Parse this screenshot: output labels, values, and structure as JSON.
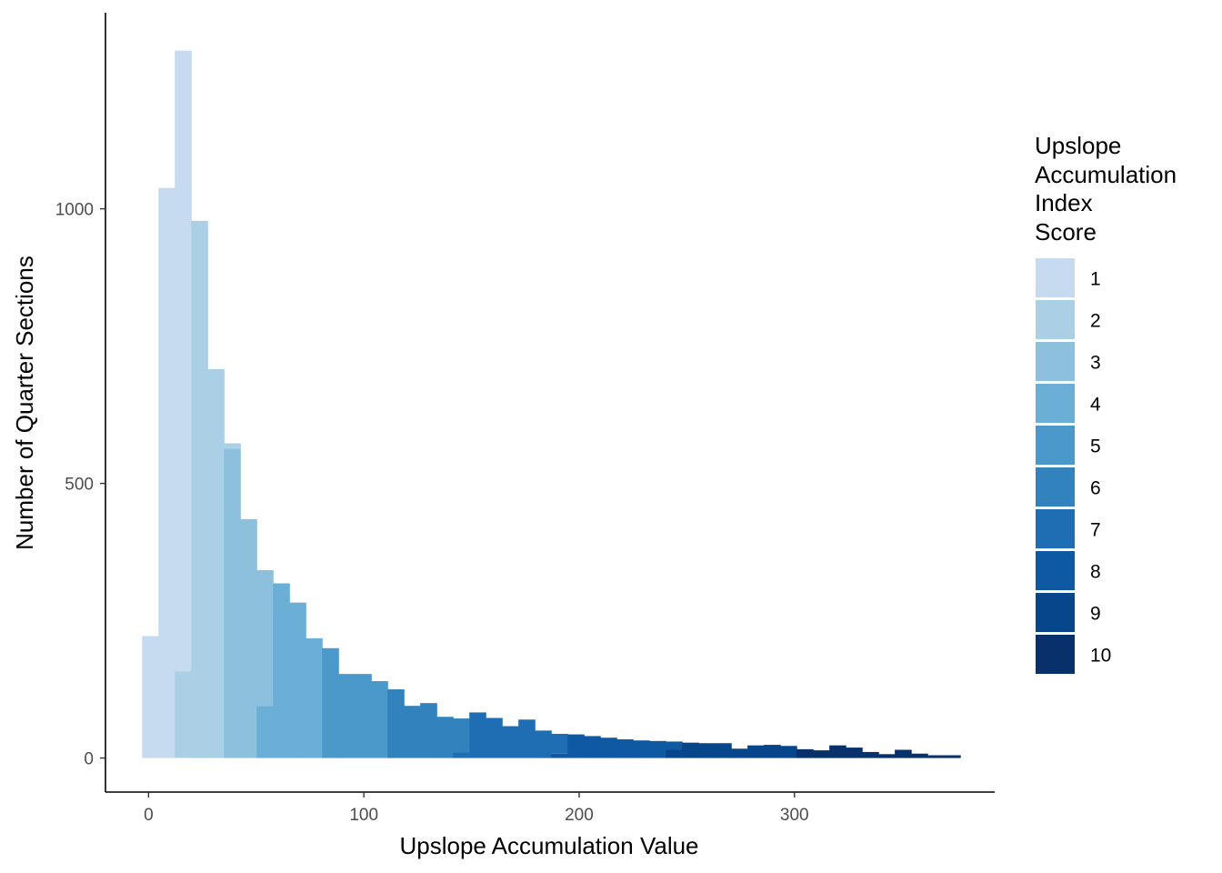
{
  "chart_data": {
    "type": "bar",
    "subtype": "stacked-histogram",
    "xlabel": "Upslope Accumulation Value",
    "ylabel": "Number of Quarter Sections",
    "xlim": [
      -20,
      393
    ],
    "ylim": [
      -62,
      1357
    ],
    "x_ticks": [
      {
        "value": 0,
        "label": "0"
      },
      {
        "value": 100,
        "label": "100"
      },
      {
        "value": 200,
        "label": "200"
      },
      {
        "value": 300,
        "label": "300"
      }
    ],
    "y_ticks": [
      {
        "value": 0,
        "label": "0"
      },
      {
        "value": 500,
        "label": "500"
      },
      {
        "value": 1000,
        "label": "1000"
      }
    ],
    "grid": false,
    "legend": {
      "title_lines": [
        "Upslope",
        "Accumulation",
        "Index",
        "Score"
      ],
      "placement": "right",
      "items": [
        {
          "label": "1",
          "color": "#c6dbef"
        },
        {
          "label": "2",
          "color": "#abcfe5"
        },
        {
          "label": "3",
          "color": "#8dc0dd"
        },
        {
          "label": "4",
          "color": "#6baed6"
        },
        {
          "label": "5",
          "color": "#4b98ca"
        },
        {
          "label": "6",
          "color": "#3282bd"
        },
        {
          "label": "7",
          "color": "#1f6eb3"
        },
        {
          "label": "8",
          "color": "#0f59a3"
        },
        {
          "label": "9",
          "color": "#08468b"
        },
        {
          "label": "10",
          "color": "#08306b"
        }
      ]
    },
    "bin_width": 7.6,
    "bins": [
      {
        "x0": -3.0,
        "segments": [
          {
            "score": 1,
            "count": 222
          }
        ]
      },
      {
        "x0": 4.6,
        "segments": [
          {
            "score": 1,
            "count": 1038
          }
        ]
      },
      {
        "x0": 12.2,
        "segments": [
          {
            "score": 2,
            "count": 158
          },
          {
            "score": 1,
            "count": 1130
          }
        ]
      },
      {
        "x0": 19.8,
        "segments": [
          {
            "score": 2,
            "count": 978
          }
        ]
      },
      {
        "x0": 27.4,
        "segments": [
          {
            "score": 2,
            "count": 708
          }
        ]
      },
      {
        "x0": 35.0,
        "segments": [
          {
            "score": 3,
            "count": 563
          },
          {
            "score": 2,
            "count": 10
          }
        ]
      },
      {
        "x0": 42.6,
        "segments": [
          {
            "score": 3,
            "count": 435
          }
        ]
      },
      {
        "x0": 50.2,
        "segments": [
          {
            "score": 4,
            "count": 95
          },
          {
            "score": 3,
            "count": 247
          }
        ]
      },
      {
        "x0": 57.8,
        "segments": [
          {
            "score": 4,
            "count": 318
          }
        ]
      },
      {
        "x0": 65.4,
        "segments": [
          {
            "score": 4,
            "count": 283
          }
        ]
      },
      {
        "x0": 73.0,
        "segments": [
          {
            "score": 4,
            "count": 218
          }
        ]
      },
      {
        "x0": 80.6,
        "segments": [
          {
            "score": 5,
            "count": 200
          }
        ]
      },
      {
        "x0": 88.2,
        "segments": [
          {
            "score": 5,
            "count": 153
          }
        ]
      },
      {
        "x0": 95.8,
        "segments": [
          {
            "score": 5,
            "count": 153
          }
        ]
      },
      {
        "x0": 103.4,
        "segments": [
          {
            "score": 5,
            "count": 140
          }
        ]
      },
      {
        "x0": 111.0,
        "segments": [
          {
            "score": 6,
            "count": 125
          }
        ]
      },
      {
        "x0": 118.6,
        "segments": [
          {
            "score": 6,
            "count": 95
          }
        ]
      },
      {
        "x0": 126.2,
        "segments": [
          {
            "score": 6,
            "count": 100
          }
        ]
      },
      {
        "x0": 133.8,
        "segments": [
          {
            "score": 6,
            "count": 75
          }
        ]
      },
      {
        "x0": 141.4,
        "segments": [
          {
            "score": 7,
            "count": 10
          },
          {
            "score": 6,
            "count": 62
          }
        ]
      },
      {
        "x0": 149.0,
        "segments": [
          {
            "score": 7,
            "count": 83
          }
        ]
      },
      {
        "x0": 156.6,
        "segments": [
          {
            "score": 7,
            "count": 73
          }
        ]
      },
      {
        "x0": 164.2,
        "segments": [
          {
            "score": 7,
            "count": 58
          }
        ]
      },
      {
        "x0": 171.8,
        "segments": [
          {
            "score": 7,
            "count": 70
          }
        ]
      },
      {
        "x0": 179.4,
        "segments": [
          {
            "score": 7,
            "count": 50
          }
        ]
      },
      {
        "x0": 187.0,
        "segments": [
          {
            "score": 8,
            "count": 8
          },
          {
            "score": 7,
            "count": 36
          }
        ]
      },
      {
        "x0": 194.6,
        "segments": [
          {
            "score": 8,
            "count": 43
          }
        ]
      },
      {
        "x0": 202.2,
        "segments": [
          {
            "score": 8,
            "count": 40
          }
        ]
      },
      {
        "x0": 209.8,
        "segments": [
          {
            "score": 8,
            "count": 37
          }
        ]
      },
      {
        "x0": 217.4,
        "segments": [
          {
            "score": 8,
            "count": 34
          }
        ]
      },
      {
        "x0": 225.0,
        "segments": [
          {
            "score": 8,
            "count": 32
          }
        ]
      },
      {
        "x0": 232.6,
        "segments": [
          {
            "score": 8,
            "count": 31
          }
        ]
      },
      {
        "x0": 240.2,
        "segments": [
          {
            "score": 9,
            "count": 15
          },
          {
            "score": 8,
            "count": 15
          }
        ]
      },
      {
        "x0": 247.8,
        "segments": [
          {
            "score": 9,
            "count": 28
          }
        ]
      },
      {
        "x0": 255.4,
        "segments": [
          {
            "score": 9,
            "count": 27
          }
        ]
      },
      {
        "x0": 263.0,
        "segments": [
          {
            "score": 9,
            "count": 27
          }
        ]
      },
      {
        "x0": 270.6,
        "segments": [
          {
            "score": 9,
            "count": 17
          }
        ]
      },
      {
        "x0": 278.2,
        "segments": [
          {
            "score": 9,
            "count": 23
          }
        ]
      },
      {
        "x0": 285.8,
        "segments": [
          {
            "score": 9,
            "count": 24
          }
        ]
      },
      {
        "x0": 293.4,
        "segments": [
          {
            "score": 9,
            "count": 22
          }
        ]
      },
      {
        "x0": 301.0,
        "segments": [
          {
            "score": 10,
            "count": 16
          }
        ]
      },
      {
        "x0": 308.6,
        "segments": [
          {
            "score": 10,
            "count": 14
          }
        ]
      },
      {
        "x0": 316.2,
        "segments": [
          {
            "score": 10,
            "count": 23
          }
        ]
      },
      {
        "x0": 323.8,
        "segments": [
          {
            "score": 10,
            "count": 19
          }
        ]
      },
      {
        "x0": 331.4,
        "segments": [
          {
            "score": 10,
            "count": 11
          }
        ]
      },
      {
        "x0": 339.0,
        "segments": [
          {
            "score": 10,
            "count": 7
          }
        ]
      },
      {
        "x0": 346.6,
        "segments": [
          {
            "score": 10,
            "count": 15
          }
        ]
      },
      {
        "x0": 354.2,
        "segments": [
          {
            "score": 10,
            "count": 8
          }
        ]
      },
      {
        "x0": 361.8,
        "segments": [
          {
            "score": 10,
            "count": 5
          }
        ]
      },
      {
        "x0": 369.4,
        "segments": [
          {
            "score": 10,
            "count": 5
          }
        ]
      }
    ]
  }
}
